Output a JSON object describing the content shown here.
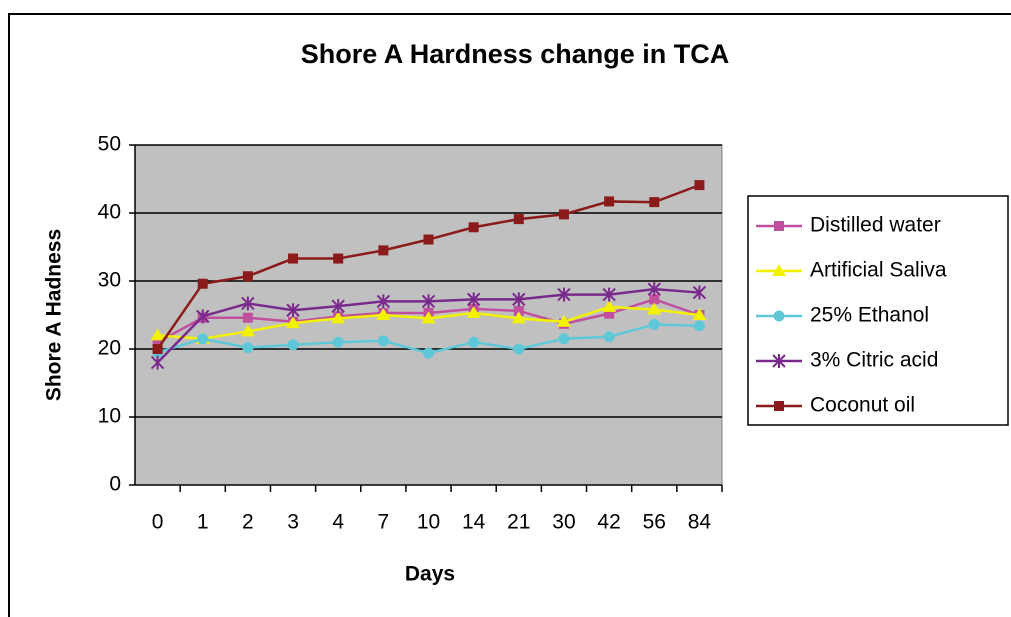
{
  "chart_data": {
    "type": "line",
    "title": "Shore A Hardness change in TCA",
    "x_label": "Days",
    "y_label": "Shore A Hadness",
    "categories": [
      "0",
      "1",
      "2",
      "3",
      "4",
      "7",
      "10",
      "14",
      "21",
      "30",
      "42",
      "56",
      "84"
    ],
    "series": [
      {
        "name": "Distilled water",
        "color": "#c0509e",
        "marker": "square",
        "values": [
          21,
          24.6,
          24.6,
          24,
          24.8,
          25.3,
          25.3,
          25.9,
          25.6,
          23.7,
          25.2,
          27.3,
          25
        ]
      },
      {
        "name": "Artificial Saliva",
        "color": "#f2f200",
        "marker": "triangle",
        "values": [
          22,
          21.5,
          22.6,
          23.8,
          24.5,
          25,
          24.5,
          25.3,
          24.5,
          24,
          26.2,
          25.8,
          25
        ]
      },
      {
        "name": "25% Ethanol",
        "color": "#5fc8d8",
        "marker": "circle",
        "values": [
          19.5,
          21.5,
          20.2,
          20.6,
          21,
          21.2,
          19.4,
          21,
          20,
          21.5,
          21.8,
          23.6,
          23.4
        ]
      },
      {
        "name": "3% Citric acid",
        "color": "#7a2a8c",
        "marker": "star",
        "values": [
          18,
          24.8,
          26.7,
          25.7,
          26.3,
          27,
          27,
          27.3,
          27.3,
          28,
          28,
          28.8,
          28.3
        ]
      },
      {
        "name": "Coconut oil",
        "color": "#8b1a1a",
        "marker": "square",
        "values": [
          20,
          29.6,
          30.7,
          33.3,
          33.3,
          34.5,
          36.1,
          37.9,
          39.1,
          39.8,
          41.7,
          41.6,
          44.1
        ]
      }
    ],
    "ylim": [
      0,
      50
    ],
    "yticks": [
      0,
      10,
      20,
      30,
      40,
      50
    ],
    "grid": true,
    "legend": "right"
  }
}
